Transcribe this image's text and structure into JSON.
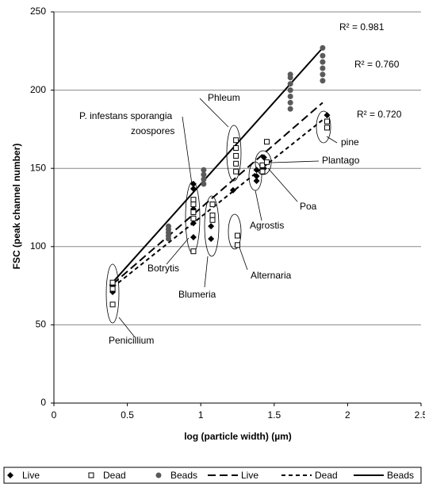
{
  "chart_data": {
    "type": "scatter",
    "ylabel": "FSC (peak channel number)",
    "xlabel": "log (particle width) (µm)",
    "xlim": [
      0,
      2.5
    ],
    "xticks": [
      0,
      0.5,
      1,
      1.5,
      2,
      2.5
    ],
    "ylim": [
      0,
      250
    ],
    "yticks": [
      0,
      50,
      100,
      150,
      200,
      250
    ],
    "grid": true,
    "series": [
      {
        "name": "Live",
        "color": "#000000",
        "x": [
          0.4,
          0.4,
          0.95,
          0.95,
          0.95,
          0.95,
          0.95,
          1.07,
          1.07,
          1.22,
          1.38,
          1.38,
          1.38,
          1.43,
          1.43,
          1.86
        ],
        "values": [
          71,
          75,
          140,
          137,
          124,
          115,
          106,
          113,
          105,
          136,
          142,
          145,
          149,
          150,
          157,
          184
        ]
      },
      {
        "name": "Dead",
        "color": "#000000",
        "x": [
          0.4,
          0.4,
          0.4,
          0.95,
          0.95,
          0.95,
          0.95,
          0.95,
          1.08,
          1.08,
          1.08,
          1.25,
          1.25,
          1.24,
          1.24,
          1.24,
          1.24,
          1.24,
          1.42,
          1.42,
          1.45,
          1.45,
          1.86,
          1.86
        ],
        "values": [
          77,
          73,
          63,
          130,
          127,
          122,
          118,
          97,
          127,
          120,
          117,
          107,
          101,
          168,
          163,
          158,
          153,
          148,
          148,
          152,
          167,
          154,
          176,
          180
        ]
      },
      {
        "name": "Beads",
        "color": "#5a5a5a",
        "x": [
          0.78,
          0.78,
          0.78,
          0.78,
          0.78,
          1.02,
          1.02,
          1.02,
          1.02,
          1.61,
          1.61,
          1.61,
          1.61,
          1.61,
          1.61,
          1.61,
          1.83,
          1.83,
          1.83,
          1.83,
          1.83,
          1.83
        ],
        "values": [
          105,
          107,
          109,
          111,
          113,
          140,
          143,
          146,
          149,
          188,
          192,
          196,
          200,
          204,
          208,
          210,
          206,
          210,
          214,
          218,
          222,
          227
        ]
      }
    ],
    "trendlines": [
      {
        "name": "Live",
        "style": "long-dash",
        "x": [
          0.4,
          1.83
        ],
        "values": [
          76,
          192
        ],
        "label": "R² = 0.760"
      },
      {
        "name": "Dead",
        "style": "short-dash",
        "x": [
          0.4,
          1.83
        ],
        "values": [
          74,
          181
        ],
        "label": "R² = 0.720"
      },
      {
        "name": "Beads",
        "style": "solid",
        "x": [
          0.38,
          1.83
        ],
        "values": [
          75,
          227
        ],
        "label": "R² = 0.981"
      }
    ],
    "annotations": [
      "P. infestans sporangia",
      "zoospores",
      "Phleum",
      "pine",
      "Plantago",
      "Poa",
      "Agrostis",
      "Botrytis",
      "Blumeria",
      "Alternaria",
      "Penicillium"
    ]
  }
}
